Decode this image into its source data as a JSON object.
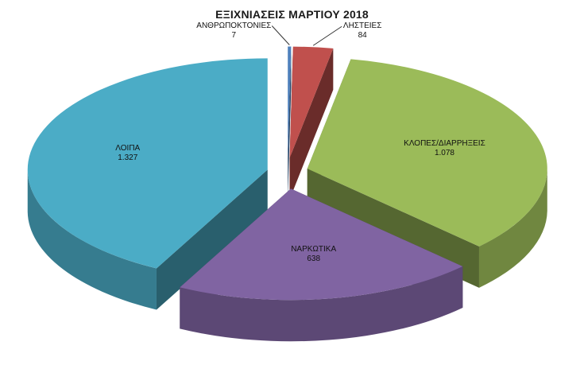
{
  "chart_data": {
    "type": "pie",
    "style": "3d-exploded",
    "title": "ΕΞΙΧΝΙΑΣΕΙΣ ΜΑΡΤΙΟΥ 2018",
    "slices": [
      {
        "label": "ΑΝΘΡΩΠΟΚΤΟΝΙΕΣ",
        "value": 7,
        "value_label": "7",
        "color": "#4f81bd"
      },
      {
        "label": "ΛΗΣΤΕΙΕΣ",
        "value": 84,
        "value_label": "84",
        "color": "#c0504d"
      },
      {
        "label": "ΚΛΟΠΕΣ/ΔΙΑΡΡΗΞΕΙΣ",
        "value": 1078,
        "value_label": "1.078",
        "color": "#9bbb59"
      },
      {
        "label": "ΝΑΡΚΩΤΙΚΑ",
        "value": 638,
        "value_label": "638",
        "color": "#8064a2"
      },
      {
        "label": "ΛΟΙΠΑ",
        "value": 1327,
        "value_label": "1.327",
        "color": "#4bacc6"
      }
    ]
  }
}
